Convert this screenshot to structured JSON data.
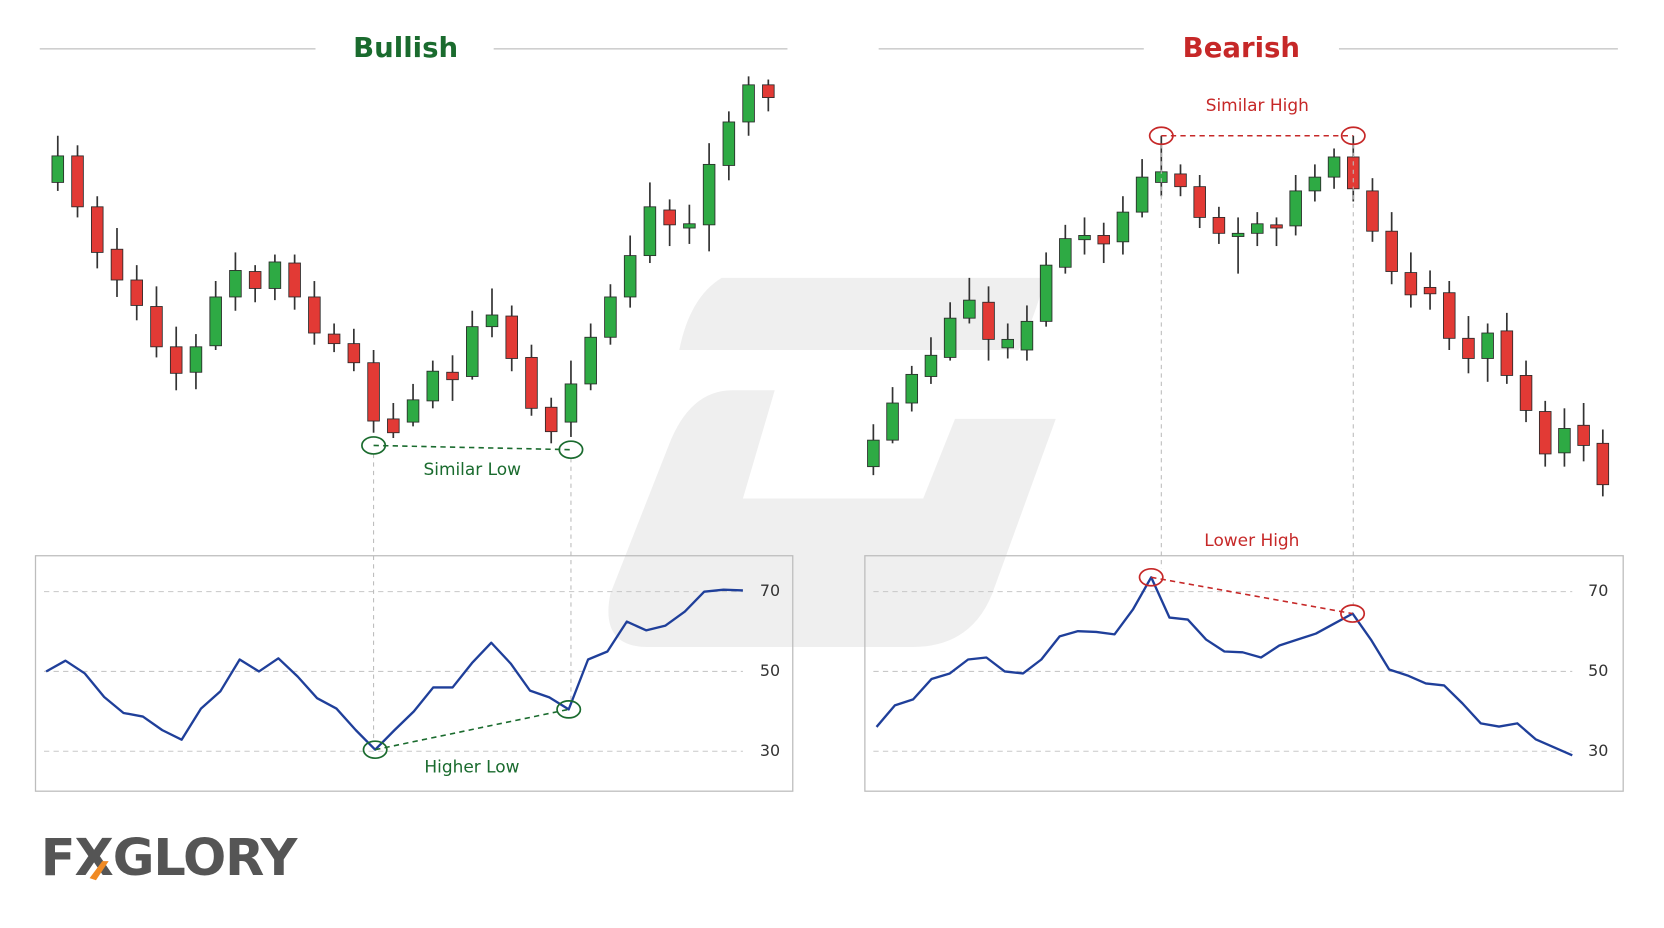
{
  "chart_data": [
    {
      "type": "candlestick",
      "title": "Bullish",
      "accent_color": "#1a6b2e",
      "up_color": "#2eaa44",
      "down_color": "#e23a35",
      "open": [
        328,
        353,
        305,
        265,
        236,
        211,
        173,
        149,
        174,
        220,
        244,
        228,
        252,
        220,
        185,
        176,
        158,
        105,
        102,
        122,
        149,
        145,
        192,
        202,
        163,
        116,
        102,
        138,
        182,
        220,
        259,
        302,
        285,
        288,
        344,
        385,
        420
      ],
      "high": [
        372,
        363,
        315,
        285,
        250,
        230,
        192,
        185,
        235,
        262,
        250,
        260,
        260,
        235,
        195,
        190,
        170,
        120,
        138,
        160,
        165,
        207,
        228,
        212,
        175,
        125,
        160,
        195,
        232,
        278,
        328,
        312,
        307,
        365,
        395,
        428,
        425
      ],
      "low": [
        320,
        295,
        247,
        220,
        198,
        163,
        132,
        133,
        170,
        207,
        215,
        217,
        208,
        175,
        168,
        150,
        92,
        87,
        98,
        115,
        122,
        142,
        182,
        150,
        108,
        82,
        88,
        132,
        175,
        210,
        252,
        268,
        270,
        263,
        330,
        372,
        395
      ],
      "close": [
        353,
        305,
        262,
        236,
        212,
        173,
        148,
        173,
        220,
        245,
        228,
        253,
        220,
        186,
        176,
        158,
        103,
        92,
        123,
        150,
        142,
        192,
        203,
        162,
        115,
        93,
        138,
        182,
        220,
        259,
        305,
        288,
        289,
        345,
        385,
        420,
        408
      ],
      "annotation": "Similar Low",
      "indicator": {
        "type": "line",
        "color": "#1f3f9a",
        "ylim": [
          20,
          79
        ],
        "yticks": [
          30,
          50,
          70
        ],
        "grid": true,
        "annotation": "Higher Low",
        "values": [
          50,
          52.7,
          49.5,
          43.6,
          39.6,
          38.7,
          35.3,
          32.9,
          40.7,
          45,
          53,
          50,
          53.3,
          48.7,
          43.3,
          40.7,
          35.3,
          30.4,
          35.3,
          40,
          46,
          46,
          52.1,
          57.2,
          52,
          45.2,
          43.5,
          40.5,
          53,
          55,
          62.5,
          60.3,
          61.5,
          65,
          70,
          70.5,
          70.3
        ]
      }
    },
    {
      "type": "candlestick",
      "title": "Bearish",
      "accent_color": "#c62828",
      "up_color": "#2eaa44",
      "down_color": "#e23a35",
      "open": [
        60,
        85,
        120,
        145,
        163,
        200,
        215,
        172,
        170,
        197,
        248,
        274,
        278,
        272,
        300,
        328,
        336,
        324,
        295,
        277,
        280,
        288,
        287,
        320,
        333,
        352,
        320,
        282,
        243,
        229,
        224,
        181,
        162,
        188,
        146,
        112,
        73,
        99,
        82
      ],
      "high": [
        100,
        135,
        155,
        182,
        215,
        238,
        230,
        195,
        212,
        262,
        288,
        295,
        290,
        315,
        350,
        372,
        345,
        335,
        305,
        295,
        300,
        295,
        335,
        345,
        360,
        372,
        332,
        300,
        262,
        245,
        235,
        202,
        195,
        205,
        160,
        122,
        115,
        120,
        95
      ],
      "low": [
        52,
        82,
        112,
        138,
        160,
        195,
        160,
        162,
        160,
        192,
        242,
        260,
        252,
        260,
        295,
        315,
        315,
        285,
        270,
        242,
        268,
        268,
        278,
        310,
        322,
        310,
        272,
        232,
        210,
        208,
        170,
        148,
        140,
        138,
        102,
        60,
        60,
        65,
        32
      ],
      "close": [
        85,
        120,
        147,
        165,
        200,
        217,
        180,
        180,
        197,
        250,
        275,
        278,
        270,
        300,
        333,
        338,
        324,
        295,
        280,
        280,
        289,
        285,
        320,
        333,
        352,
        322,
        282,
        244,
        222,
        223,
        181,
        162,
        186,
        146,
        113,
        72,
        96,
        80,
        43
      ],
      "annotation": "Similar High",
      "indicator": {
        "type": "line",
        "color": "#1f3f9a",
        "ylim": [
          20,
          79
        ],
        "yticks": [
          30,
          50,
          70
        ],
        "grid": true,
        "annotation": "Lower High",
        "values": [
          36.1,
          41.5,
          43,
          48.1,
          49.5,
          53,
          53.5,
          50,
          49.5,
          53,
          58.8,
          60.1,
          59.9,
          59.3,
          65.5,
          73.6,
          63.5,
          63,
          58,
          55,
          54.8,
          53.5,
          56.5,
          58,
          59.5,
          62,
          64.5,
          58,
          50.5,
          49,
          47,
          46.5,
          42,
          37,
          36.2,
          37,
          33,
          31,
          29
        ]
      }
    }
  ],
  "logo": "FXGLORY"
}
